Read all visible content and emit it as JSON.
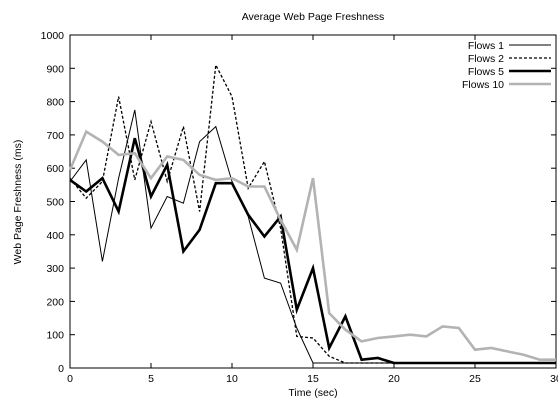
{
  "chart_data": {
    "type": "line",
    "title": "Average Web Page Freshness",
    "xlabel": "Time (sec)",
    "ylabel": "Web Page Freshness (ms)",
    "xlim": [
      0,
      30
    ],
    "ylim": [
      0,
      1000
    ],
    "xticks": [
      0,
      5,
      10,
      15,
      20,
      25,
      30
    ],
    "yticks": [
      0,
      100,
      200,
      300,
      400,
      500,
      600,
      700,
      800,
      900,
      1000
    ],
    "grid": false,
    "legend_position": "top-right",
    "x": [
      0,
      1,
      2,
      3,
      4,
      5,
      6,
      7,
      8,
      9,
      10,
      11,
      12,
      13,
      14,
      15,
      16,
      17,
      18,
      19,
      20,
      21,
      22,
      23,
      24,
      25,
      26,
      27,
      28,
      29,
      30
    ],
    "series": [
      {
        "name": "Flows 1",
        "color": "#000000",
        "style": "thin-solid",
        "values": [
          560,
          625,
          320,
          570,
          775,
          420,
          515,
          495,
          680,
          725,
          560,
          455,
          270,
          255,
          120,
          15,
          15,
          15,
          15,
          15,
          15,
          15,
          15,
          15,
          15,
          15,
          15,
          15,
          15,
          15,
          15
        ]
      },
      {
        "name": "Flows 2",
        "color": "#000000",
        "style": "dashed",
        "values": [
          570,
          510,
          560,
          815,
          565,
          740,
          560,
          725,
          470,
          910,
          815,
          540,
          620,
          420,
          95,
          90,
          35,
          15,
          15,
          15,
          15,
          15,
          15,
          15,
          15,
          15,
          15,
          15,
          15,
          15,
          15
        ]
      },
      {
        "name": "Flows 5",
        "color": "#000000",
        "style": "thick-solid",
        "values": [
          565,
          530,
          570,
          470,
          690,
          515,
          610,
          350,
          415,
          555,
          555,
          460,
          395,
          455,
          175,
          300,
          60,
          155,
          25,
          30,
          15,
          15,
          15,
          15,
          15,
          15,
          15,
          15,
          15,
          15,
          15
        ]
      },
      {
        "name": "Flows 10",
        "color": "#b3b3b3",
        "style": "thick-solid",
        "values": [
          595,
          710,
          680,
          640,
          645,
          570,
          635,
          625,
          580,
          565,
          570,
          545,
          545,
          445,
          355,
          570,
          165,
          115,
          80,
          90,
          95,
          100,
          95,
          125,
          120,
          55,
          60,
          50,
          40,
          25,
          25
        ]
      }
    ]
  }
}
